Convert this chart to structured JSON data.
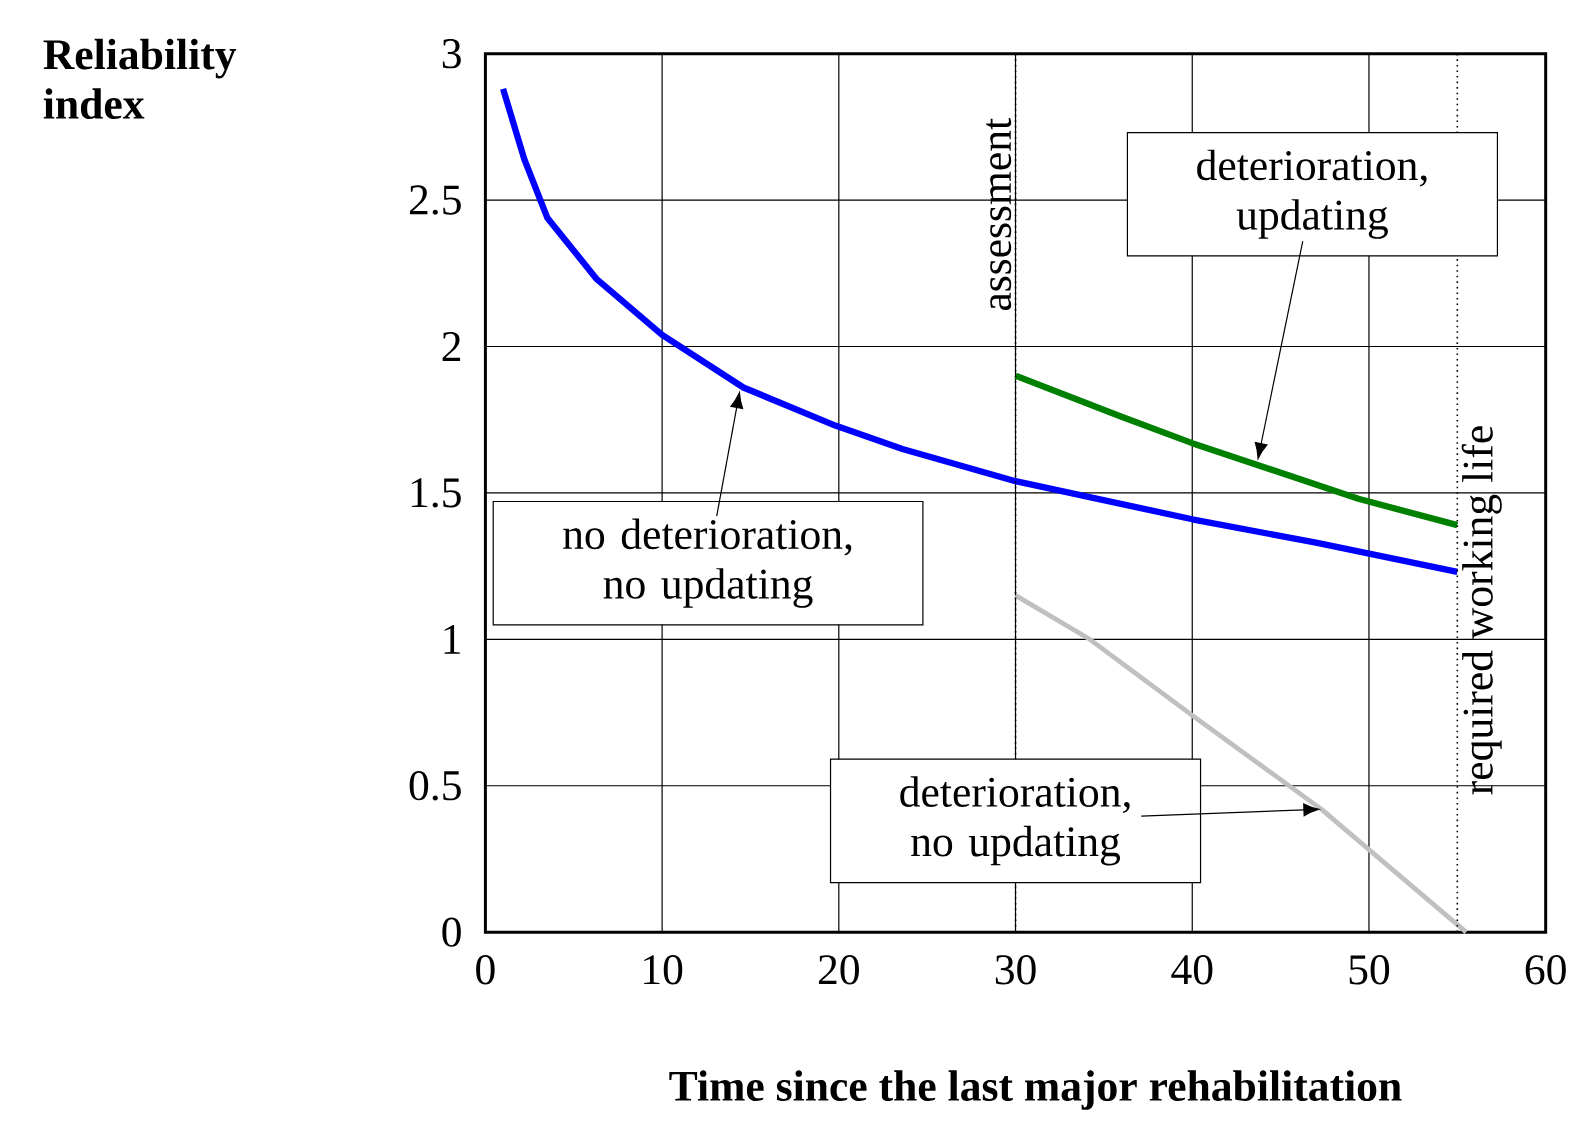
{
  "chart_data": {
    "type": "line",
    "xlabel": "Time since the last major rehabilitation",
    "ylabel": "Reliability index",
    "xlim": [
      0,
      60
    ],
    "ylim": [
      0,
      3
    ],
    "xticks": [
      0,
      10,
      20,
      30,
      40,
      50,
      60
    ],
    "yticks": [
      0,
      0.5,
      1,
      1.5,
      2,
      2.5,
      3
    ],
    "grid": true,
    "line_style": "solid",
    "marker": "none",
    "series": [
      {
        "color": "#0000ff",
        "x": [
          1,
          2.2,
          3.5,
          6.3,
          10,
          14.6,
          19.8,
          23.6,
          30,
          40,
          47,
          55
        ],
        "values": [
          2.88,
          2.64,
          2.44,
          2.23,
          2.04,
          1.86,
          1.73,
          1.65,
          1.54,
          1.41,
          1.33,
          1.23
        ]
      },
      {
        "color": "#008000",
        "x": [
          30,
          36,
          40,
          49.4,
          55
        ],
        "values": [
          1.9,
          1.76,
          1.67,
          1.48,
          1.39
        ]
      },
      {
        "color": "#c0c0c0",
        "x": [
          30,
          34.2,
          40,
          47.3,
          55.5
        ],
        "values": [
          1.15,
          1.0,
          0.74,
          0.42,
          0
        ]
      }
    ],
    "ref_lines": [
      {
        "axis": "x",
        "value": 30,
        "label": "assessment",
        "line_style": "dotted"
      },
      {
        "axis": "x",
        "value": 55,
        "label": "required working life",
        "line_style": "dotted"
      }
    ],
    "annotations": [
      {
        "text": "no deterioration, no updating",
        "x": 14.4,
        "y": 1.85
      },
      {
        "text": "deterioration, updating",
        "x": 43.7,
        "y": 1.61
      },
      {
        "text": "deterioration, no updating",
        "x": 47.3,
        "y": 0.42
      }
    ]
  }
}
